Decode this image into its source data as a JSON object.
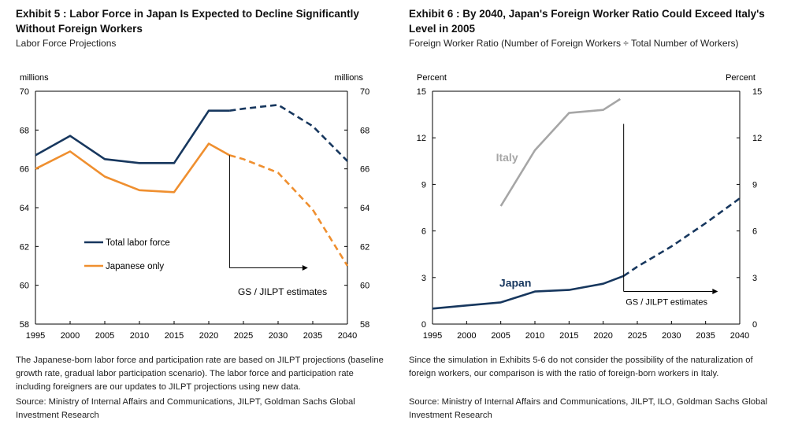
{
  "left": {
    "title": "Exhibit 5 : Labor Force in Japan Is Expected to Decline Significantly Without Foreign Workers",
    "subtitle": "Labor Force Projections",
    "note": "The Japanese-born labor force and participation rate are based on JILPT projections (baseline growth rate, gradual labor participation scenario). The labor force and participation rate including foreigners are our updates to JILPT projections using new data.",
    "source": "Source: Ministry of Internal Affairs and Communications, JILPT, Goldman Sachs Global Investment Research"
  },
  "right": {
    "title": "Exhibit 6 : By 2040, Japan's Foreign Worker Ratio Could Exceed Italy's Level in 2005",
    "subtitle": "Foreign Worker Ratio (Number of Foreign Workers ÷ Total Number of Workers)",
    "note": "Since the simulation in Exhibits 5-6 do not consider the possibility of the naturalization of foreign workers, our comparison is with the ratio of foreign-born workers in Italy.",
    "source": "Source: Ministry of Internal Affairs and Communications, JILPT, ILO, Goldman Sachs Global Investment Research"
  },
  "chart_data": [
    {
      "type": "line",
      "title": "Labor Force Projections",
      "ylabel_left": "millions",
      "ylabel_right": "millions",
      "x_ticks": [
        1995,
        2000,
        2005,
        2010,
        2015,
        2020,
        2025,
        2030,
        2035,
        2040
      ],
      "xlim": [
        1995,
        2040
      ],
      "ylim": [
        58,
        70
      ],
      "y_ticks": [
        58,
        60,
        62,
        64,
        66,
        68,
        70
      ],
      "projection_start": 2023,
      "annotation": "GS / JILPT estimates",
      "series": [
        {
          "name": "Total labor force",
          "color": "#17375e",
          "x": [
            1995,
            2000,
            2005,
            2010,
            2015,
            2020,
            2023,
            2025,
            2030,
            2035,
            2040
          ],
          "values": [
            66.7,
            67.7,
            66.5,
            66.3,
            66.3,
            69.0,
            69.0,
            69.1,
            69.3,
            68.2,
            66.4
          ]
        },
        {
          "name": "Japanese only",
          "color": "#ef8f2f",
          "x": [
            1995,
            2000,
            2005,
            2010,
            2015,
            2020,
            2023,
            2025,
            2030,
            2035,
            2040
          ],
          "values": [
            66.0,
            66.9,
            65.6,
            64.9,
            64.8,
            67.3,
            66.7,
            66.5,
            65.8,
            63.9,
            61.0
          ]
        }
      ]
    },
    {
      "type": "line",
      "title": "Foreign Worker Ratio (Number of Foreign Workers ÷ Total Number of Workers)",
      "ylabel_left": "Percent",
      "ylabel_right": "Percent",
      "x_ticks": [
        1995,
        2000,
        2005,
        2010,
        2015,
        2020,
        2025,
        2030,
        2035,
        2040
      ],
      "xlim": [
        1995,
        2040
      ],
      "ylim": [
        0,
        15
      ],
      "y_ticks": [
        0,
        3,
        6,
        9,
        12,
        15
      ],
      "projection_start": 2023,
      "annotation": "GS / JILPT estimates",
      "series": [
        {
          "name": "Italy",
          "color": "#a6a6a6",
          "x": [
            2005,
            2010,
            2015,
            2020,
            2022.5
          ],
          "values": [
            7.6,
            11.2,
            13.6,
            13.8,
            14.5
          ]
        },
        {
          "name": "Japan",
          "color": "#17375e",
          "x": [
            1995,
            2000,
            2005,
            2010,
            2015,
            2020,
            2023,
            2025,
            2030,
            2035,
            2040
          ],
          "values": [
            1.0,
            1.2,
            1.4,
            2.1,
            2.2,
            2.6,
            3.1,
            3.7,
            5.0,
            6.5,
            8.1
          ]
        }
      ]
    }
  ]
}
